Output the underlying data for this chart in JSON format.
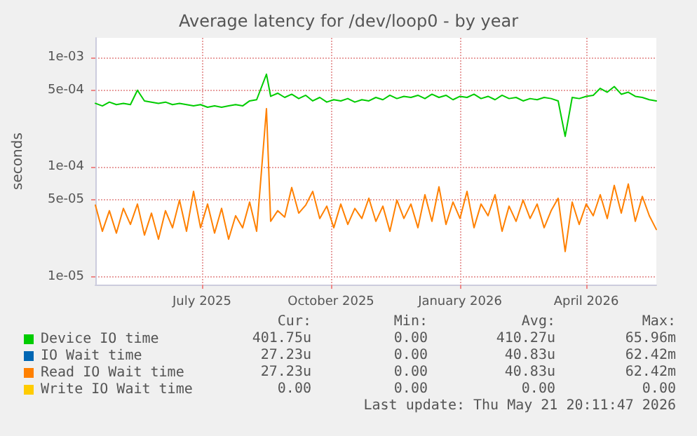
{
  "chart_data": {
    "type": "line",
    "title": "Average latency for /dev/loop0 - by year",
    "ylabel": "seconds",
    "x": [
      "2025-04-16",
      "2025-04-21",
      "2025-04-26",
      "2025-05-01",
      "2025-05-06",
      "2025-05-11",
      "2025-05-16",
      "2025-05-21",
      "2025-05-26",
      "2025-05-31",
      "2025-06-05",
      "2025-06-10",
      "2025-06-15",
      "2025-06-20",
      "2025-06-25",
      "2025-06-30",
      "2025-07-05",
      "2025-07-10",
      "2025-07-15",
      "2025-07-20",
      "2025-07-25",
      "2025-07-30",
      "2025-08-04",
      "2025-08-09",
      "2025-08-16",
      "2025-08-19",
      "2025-08-24",
      "2025-08-29",
      "2025-09-03",
      "2025-09-08",
      "2025-09-13",
      "2025-09-18",
      "2025-09-23",
      "2025-09-28",
      "2025-10-03",
      "2025-10-08",
      "2025-10-13",
      "2025-10-18",
      "2025-10-23",
      "2025-10-28",
      "2025-11-02",
      "2025-11-07",
      "2025-11-12",
      "2025-11-17",
      "2025-11-22",
      "2025-11-27",
      "2025-12-02",
      "2025-12-07",
      "2025-12-12",
      "2025-12-17",
      "2025-12-22",
      "2025-12-27",
      "2026-01-01",
      "2026-01-06",
      "2026-01-11",
      "2026-01-16",
      "2026-01-21",
      "2026-01-26",
      "2026-01-31",
      "2026-02-05",
      "2026-02-10",
      "2026-02-15",
      "2026-02-20",
      "2026-02-25",
      "2026-03-02",
      "2026-03-07",
      "2026-03-12",
      "2026-03-17",
      "2026-03-22",
      "2026-03-27",
      "2026-04-01",
      "2026-04-06",
      "2026-04-11",
      "2026-04-16",
      "2026-04-21",
      "2026-04-26",
      "2026-05-01",
      "2026-05-06",
      "2026-05-11",
      "2026-05-16",
      "2026-05-21"
    ],
    "series": [
      {
        "name": "Device IO time",
        "color": "#00cc00",
        "values": [
          0.00038,
          0.00036,
          0.00039,
          0.00037,
          0.00038,
          0.00037,
          0.0005,
          0.0004,
          0.00039,
          0.00038,
          0.00039,
          0.00037,
          0.00038,
          0.00037,
          0.00036,
          0.00037,
          0.00035,
          0.00036,
          0.00035,
          0.00036,
          0.00037,
          0.00036,
          0.0004,
          0.00041,
          0.0007,
          0.00044,
          0.00047,
          0.00043,
          0.00046,
          0.00042,
          0.00045,
          0.0004,
          0.00043,
          0.00039,
          0.00041,
          0.0004,
          0.00042,
          0.00039,
          0.00041,
          0.0004,
          0.00043,
          0.00041,
          0.00045,
          0.00042,
          0.00044,
          0.00043,
          0.00045,
          0.00042,
          0.00046,
          0.00043,
          0.00045,
          0.00041,
          0.00044,
          0.00043,
          0.00046,
          0.00042,
          0.00044,
          0.00041,
          0.00045,
          0.00042,
          0.00043,
          0.0004,
          0.00042,
          0.00041,
          0.00043,
          0.00042,
          0.0004,
          0.00019,
          0.00043,
          0.00042,
          0.00044,
          0.00045,
          0.00052,
          0.00048,
          0.00054,
          0.00046,
          0.00048,
          0.00044,
          0.00043,
          0.00041,
          0.0004
        ]
      },
      {
        "name": "IO Wait time",
        "color": "#0066b3",
        "values": [
          null,
          null,
          null,
          null,
          null,
          null,
          null,
          null,
          null,
          null,
          null,
          null,
          null,
          null,
          null,
          null,
          null,
          null,
          null,
          null,
          null,
          null,
          null,
          null,
          null,
          null,
          null,
          null,
          null,
          null,
          null,
          null,
          null,
          null,
          null,
          null,
          null,
          null,
          null,
          null,
          null,
          null,
          null,
          null,
          null,
          null,
          null,
          null,
          null,
          null,
          null,
          null,
          null,
          null,
          null,
          null,
          null,
          null,
          null,
          null,
          null,
          null,
          null,
          null,
          null,
          null,
          null,
          null,
          null,
          null,
          null,
          null,
          null,
          null,
          null,
          null,
          null,
          null,
          null,
          null,
          null
        ]
      },
      {
        "name": "Read IO Wait time",
        "color": "#ff8000",
        "values": [
          4.5e-05,
          2.6e-05,
          4e-05,
          2.5e-05,
          4.2e-05,
          3e-05,
          4.6e-05,
          2.4e-05,
          3.8e-05,
          2.2e-05,
          4e-05,
          2.8e-05,
          5e-05,
          2.6e-05,
          6e-05,
          2.8e-05,
          4.6e-05,
          2.5e-05,
          4.2e-05,
          2.2e-05,
          3.6e-05,
          2.8e-05,
          4.8e-05,
          2.6e-05,
          0.00034,
          3.2e-05,
          4e-05,
          3.5e-05,
          6.5e-05,
          3.8e-05,
          4.5e-05,
          6e-05,
          3.4e-05,
          4.4e-05,
          2.8e-05,
          4.6e-05,
          3e-05,
          4.2e-05,
          3.4e-05,
          5.2e-05,
          3.2e-05,
          4.4e-05,
          2.6e-05,
          5e-05,
          3.4e-05,
          4.6e-05,
          2.8e-05,
          5.6e-05,
          3.2e-05,
          6.6e-05,
          3e-05,
          4.8e-05,
          3.4e-05,
          6e-05,
          2.8e-05,
          4.6e-05,
          3.6e-05,
          5.6e-05,
          2.6e-05,
          4.4e-05,
          3.2e-05,
          5e-05,
          3.4e-05,
          4.6e-05,
          2.8e-05,
          4e-05,
          5.2e-05,
          1.7e-05,
          4.8e-05,
          3e-05,
          4.6e-05,
          3.6e-05,
          5.6e-05,
          3.4e-05,
          6.8e-05,
          3.8e-05,
          7e-05,
          3.2e-05,
          5.4e-05,
          3.6e-05,
          2.7e-05
        ]
      },
      {
        "name": "Write IO Wait time",
        "color": "#ffcc00",
        "values": [
          null,
          null,
          null,
          null,
          null,
          null,
          null,
          null,
          null,
          null,
          null,
          null,
          null,
          null,
          null,
          null,
          null,
          null,
          null,
          null,
          null,
          null,
          null,
          null,
          null,
          null,
          null,
          null,
          null,
          null,
          null,
          null,
          null,
          null,
          null,
          null,
          null,
          null,
          null,
          null,
          null,
          null,
          null,
          null,
          null,
          null,
          null,
          null,
          null,
          null,
          null,
          null,
          null,
          null,
          null,
          null,
          null,
          null,
          null,
          null,
          null,
          null,
          null,
          null,
          null,
          null,
          null,
          null,
          null,
          null,
          null,
          null,
          null,
          null,
          null,
          null,
          null,
          null,
          null,
          null,
          null
        ]
      }
    ],
    "xlim": [
      "2025-04-16",
      "2026-05-21"
    ],
    "xticks": [
      {
        "value": "2025-07-01",
        "label": "July 2025"
      },
      {
        "value": "2025-10-01",
        "label": "October 2025"
      },
      {
        "value": "2026-01-01",
        "label": "January 2026"
      },
      {
        "value": "2026-04-01",
        "label": "April 2026"
      }
    ],
    "ylim": [
      8.5e-06,
      0.0015
    ],
    "yticks": [
      {
        "value": 1e-05,
        "label": "1e-05"
      },
      {
        "value": 5e-05,
        "label": "5e-05"
      },
      {
        "value": 0.0001,
        "label": "1e-04"
      },
      {
        "value": 0.0005,
        "label": "5e-04"
      },
      {
        "value": 0.001,
        "label": "1e-03"
      }
    ],
    "log": true,
    "grid": true,
    "legend": "bottom left",
    "marker": "none",
    "annotations": [
      "Cur:",
      "Min:",
      "Avg:",
      "Max:",
      "401.75u",
      "0.00",
      "410.27u",
      "65.96m",
      "27.23u",
      "0.00",
      "40.83u",
      "62.42m",
      "27.23u",
      "0.00",
      "40.83u",
      "62.42m",
      "0.00",
      "0.00",
      "0.00",
      "0.00",
      "Last update: Thu May 21 20:11:47 2026"
    ]
  }
}
